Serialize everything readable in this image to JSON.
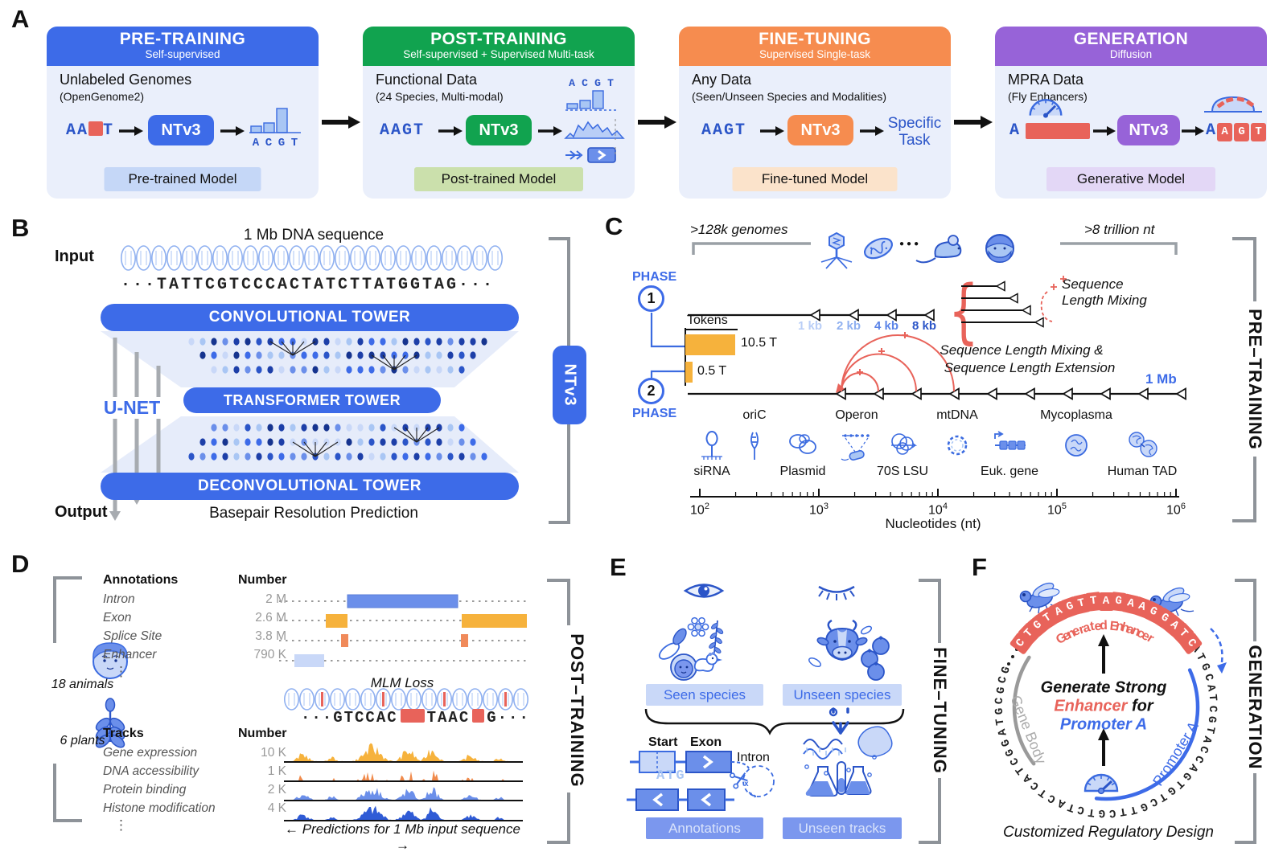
{
  "panelA": {
    "label": "A",
    "stages": [
      {
        "title": "PRE-TRAINING",
        "subtitle": "Self-supervised",
        "line1": "Unlabeled Genomes",
        "line2": "(OpenGenome2)",
        "model": "NTv3",
        "model_label": "Pre-trained Model",
        "seq_a": "AA",
        "seq_b": "T",
        "acgt": [
          "A",
          "C",
          "G",
          "T"
        ],
        "color": "#3D6BE8",
        "label_bg": "#C5D7F7"
      },
      {
        "title": "POST-TRAINING",
        "subtitle": "Self-supervised + Supervised Multi-task",
        "line1": "Functional Data",
        "line2": "(24 Species, Multi-modal)",
        "model": "NTv3",
        "model_label": "Post-trained Model",
        "seq": "AAGT",
        "acgt": [
          "A",
          "C",
          "G",
          "T"
        ],
        "color": "#11A34F",
        "label_bg": "#CBE0AC"
      },
      {
        "title": "FINE-TUNING",
        "subtitle": "Supervised Single-task",
        "line1": "Any Data",
        "line2": "(Seen/Unseen Species and Modalities)",
        "model": "NTv3",
        "model_label": "Fine-tuned Model",
        "seq": "AAGT",
        "task1": "Specific",
        "task2": "Task",
        "color": "#F68C4F",
        "label_bg": "#FBE3CB"
      },
      {
        "title": "GENERATION",
        "subtitle": "Diffusion",
        "line1": "MPRA Data",
        "line2": "(Fly Enhancers)",
        "model": "NTv3",
        "model_label": "Generative Model",
        "seq_a": "A",
        "out_a": "A",
        "out_red": [
          "A",
          "G",
          "T"
        ],
        "color": "#9763D8",
        "label_bg": "#E3D7F6"
      }
    ]
  },
  "panelB": {
    "label": "B",
    "title": "1 Mb DNA sequence",
    "input": "Input",
    "sequence": "···TATTCGTCCCACTATCTTATGGTAG···",
    "conv": "CONVOLUTIONAL TOWER",
    "unet": "U-NET",
    "transformer": "TRANSFORMER TOWER",
    "deconv": "DECONVOLUTIONAL TOWER",
    "output": "Output",
    "output_text": "Basepair Resolution Prediction",
    "model": "NTv3"
  },
  "panelC": {
    "label": "C",
    "genomes": ">128k genomes",
    "trillion": ">8 trillion nt",
    "ellipsis": "●●●",
    "phase": "PHASE",
    "phase1": "1",
    "phase2": "2",
    "tokens": "Tokens",
    "bar1_label": "10.5 T",
    "bar2_label": "0.5 T",
    "kb": [
      "1 kb",
      "2 kb",
      "4 kb",
      "8 kb"
    ],
    "mix1a": "Sequence",
    "mix1b": "Length Mixing",
    "mix2a": "Sequence Length Mixing &",
    "mix2b": "Sequence Length Extension",
    "mb": "1 Mb",
    "scale_items": [
      {
        "label": "siRNA",
        "pos": "below"
      },
      {
        "label": "oriC",
        "pos": "above"
      },
      {
        "label": "Plasmid",
        "pos": "below"
      },
      {
        "label": "Operon",
        "pos": "above"
      },
      {
        "label": "70S LSU",
        "pos": "below"
      },
      {
        "label": "mtDNA",
        "pos": "above"
      },
      {
        "label": "Euk. gene",
        "pos": "below"
      },
      {
        "label": "Mycoplasma",
        "pos": "above"
      },
      {
        "label": "Human TAD",
        "pos": "below"
      }
    ],
    "axis_base": "10",
    "axis_exponents": [
      "2",
      "3",
      "4",
      "5",
      "6"
    ],
    "axis_label": "Nucleotides (nt)",
    "bracket": "PRE–TRAINING"
  },
  "panelD": {
    "label": "D",
    "animals": "18 animals",
    "plants": "6 plants",
    "annotations": {
      "h1": "Annotations",
      "h2": "Number",
      "rows": [
        [
          "Intron",
          "2 M"
        ],
        [
          "Exon",
          "2.6 M"
        ],
        [
          "Splice Site",
          "3.8 M"
        ],
        [
          "Enhancer",
          "790 K"
        ]
      ]
    },
    "tracks": {
      "h1": "Tracks",
      "h2": "Number",
      "rows": [
        [
          "Gene expression",
          "10 K"
        ],
        [
          "DNA accessibility",
          "1 K"
        ],
        [
          "Protein binding",
          "2 K"
        ],
        [
          "Histone modification",
          "4 K"
        ]
      ]
    },
    "ellipsis": "⋮",
    "mlm": "MLM Loss",
    "seq1": "···GTCCAC",
    "seq2": "TAAC",
    "seq3": "G···",
    "predictions": "← Predictions for 1 Mb input sequence →",
    "bracket": "POST–TRAINING",
    "track_colors": [
      "#F6B23C",
      "#F08A4B",
      "#6B8FEA",
      "#2F5BD6"
    ]
  },
  "panelE": {
    "label": "E",
    "seen": "Seen species",
    "unseen": "Unseen species",
    "start": "Start",
    "exon": "Exon",
    "intron": "Intron",
    "atg": "ATG",
    "annotations": "Annotations",
    "unseen_tracks": "Unseen tracks",
    "bracket": "FINE–TUNING"
  },
  "panelF": {
    "label": "F",
    "enhancer_seq": "CTGTAGTTAGAAGGATC",
    "generated": "Generated Enhancer",
    "ring_seq": "ATGCATCGTACCAGTGTCGTTCGTCTACTCATCGGATGCGCG",
    "c1": "Generate Strong",
    "c2a": "Enhancer",
    "c2b": " for",
    "c3": "Promoter A",
    "gene_body": "Gene Body",
    "promoter_arc": "Promoter A",
    "caption": "Customized Regulatory Design",
    "bracket": "GENERATION"
  }
}
